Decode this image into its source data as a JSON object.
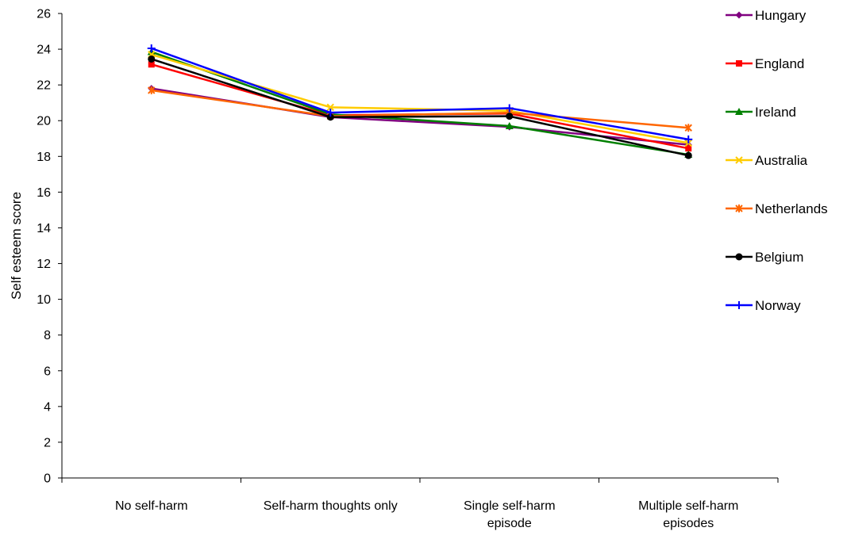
{
  "chart_data": {
    "type": "line",
    "title": "",
    "xlabel": "",
    "ylabel": "Self esteem score",
    "ylim": [
      0,
      26
    ],
    "ytick_step": 2,
    "grid": false,
    "legend_position": "right",
    "categories": [
      [
        "No self-harm"
      ],
      [
        "Self-harm thoughts only"
      ],
      [
        "Single self-harm",
        "episode"
      ],
      [
        "Multiple self-harm",
        "episodes"
      ]
    ],
    "series": [
      {
        "name": "Hungary",
        "color": "#800080",
        "marker": "diamond",
        "values": [
          21.8,
          20.2,
          19.65,
          18.65
        ]
      },
      {
        "name": "England",
        "color": "#ff0000",
        "marker": "square",
        "values": [
          23.15,
          20.3,
          20.4,
          18.45
        ]
      },
      {
        "name": "Ireland",
        "color": "#008000",
        "marker": "triangle",
        "values": [
          23.85,
          20.35,
          19.7,
          18.1
        ]
      },
      {
        "name": "Australia",
        "color": "#ffcc00",
        "marker": "x",
        "values": [
          23.7,
          20.75,
          20.55,
          18.75
        ]
      },
      {
        "name": "Netherlands",
        "color": "#ff6600",
        "marker": "asterisk",
        "values": [
          21.7,
          20.25,
          20.45,
          19.6
        ]
      },
      {
        "name": "Belgium",
        "color": "#000000",
        "marker": "circle",
        "values": [
          23.45,
          20.2,
          20.25,
          18.05
        ]
      },
      {
        "name": "Norway",
        "color": "#0000ff",
        "marker": "plus",
        "values": [
          24.05,
          20.45,
          20.7,
          18.95
        ]
      }
    ]
  }
}
